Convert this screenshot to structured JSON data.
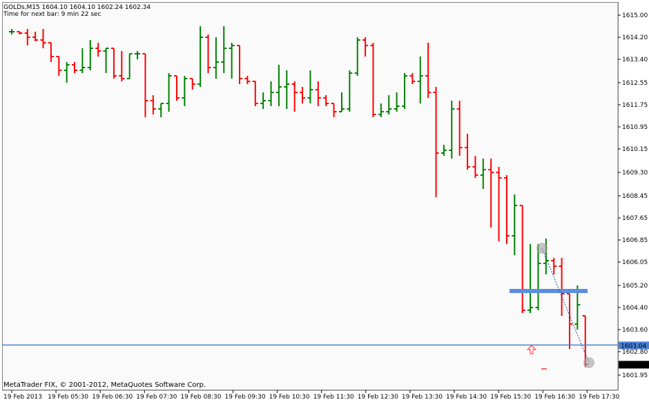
{
  "header": {
    "symbol_line": "GOLDs,M15  1604.10 1604.10 1602.24 1602.34",
    "timer_line": "Time for next bar: 9 min 22 sec"
  },
  "footer": {
    "copyright": "MetaTrader FIX, © 2001-2012, MetaQuotes Software Corp."
  },
  "colors": {
    "bull": "#008000",
    "bear": "#ff0000",
    "hline": "#4a7fd4",
    "zone": "#5a8ee0",
    "current_price_bg": "#000000",
    "level_label_bg": "#4a7fd4"
  },
  "chart_data": {
    "type": "ohlc",
    "ylim": [
      1601.55,
      1615.3
    ],
    "price_ticks": [
      "1615.00",
      "1614.20",
      "1613.40",
      "1612.55",
      "1611.75",
      "1610.95",
      "1610.15",
      "1609.30",
      "1608.45",
      "1607.65",
      "1606.85",
      "1606.05",
      "1605.20",
      "1604.40",
      "1603.60",
      "1602.80",
      "1601.95"
    ],
    "time_ticks": [
      "19 Feb 2013",
      "19 Feb 05:30",
      "19 Feb 06:30",
      "19 Feb 07:30",
      "19 Feb 08:30",
      "19 Feb 09:30",
      "19 Feb 10:30",
      "19 Feb 11:30",
      "19 Feb 12:30",
      "19 Feb 13:30",
      "19 Feb 14:30",
      "19 Feb 15:30",
      "19 Feb 16:30",
      "19 Feb 17:30"
    ],
    "bars": [
      {
        "o": 1614.4,
        "h": 1614.5,
        "l": 1614.3,
        "c": 1614.4
      },
      {
        "o": 1614.4,
        "h": 1614.4,
        "l": 1614.3,
        "c": 1614.35
      },
      {
        "o": 1614.35,
        "h": 1614.5,
        "l": 1613.9,
        "c": 1614.2
      },
      {
        "o": 1614.2,
        "h": 1614.4,
        "l": 1614.05,
        "c": 1614.1
      },
      {
        "o": 1614.1,
        "h": 1614.5,
        "l": 1613.8,
        "c": 1614.0
      },
      {
        "o": 1614.0,
        "h": 1614.0,
        "l": 1613.3,
        "c": 1613.5
      },
      {
        "o": 1613.5,
        "h": 1613.5,
        "l": 1612.8,
        "c": 1613.0
      },
      {
        "o": 1613.0,
        "h": 1613.3,
        "l": 1612.55,
        "c": 1613.2
      },
      {
        "o": 1613.2,
        "h": 1613.3,
        "l": 1612.9,
        "c": 1613.0
      },
      {
        "o": 1613.0,
        "h": 1613.8,
        "l": 1612.9,
        "c": 1613.1
      },
      {
        "o": 1613.1,
        "h": 1614.1,
        "l": 1613.0,
        "c": 1613.8
      },
      {
        "o": 1613.8,
        "h": 1614.0,
        "l": 1613.5,
        "c": 1613.7
      },
      {
        "o": 1613.7,
        "h": 1613.8,
        "l": 1612.9,
        "c": 1613.8
      },
      {
        "o": 1613.8,
        "h": 1613.8,
        "l": 1612.7,
        "c": 1612.8
      },
      {
        "o": 1612.8,
        "h": 1613.7,
        "l": 1612.6,
        "c": 1612.7
      },
      {
        "o": 1612.7,
        "h": 1613.6,
        "l": 1612.7,
        "c": 1613.6
      },
      {
        "o": 1613.6,
        "h": 1613.7,
        "l": 1613.4,
        "c": 1613.6
      },
      {
        "o": 1613.6,
        "h": 1613.6,
        "l": 1611.3,
        "c": 1611.9
      },
      {
        "o": 1611.9,
        "h": 1612.1,
        "l": 1611.4,
        "c": 1611.6
      },
      {
        "o": 1611.6,
        "h": 1611.8,
        "l": 1611.3,
        "c": 1611.8
      },
      {
        "o": 1611.8,
        "h": 1612.9,
        "l": 1611.5,
        "c": 1612.8
      },
      {
        "o": 1612.8,
        "h": 1612.8,
        "l": 1611.9,
        "c": 1612.0
      },
      {
        "o": 1612.0,
        "h": 1612.8,
        "l": 1611.7,
        "c": 1612.7
      },
      {
        "o": 1612.7,
        "h": 1612.7,
        "l": 1612.3,
        "c": 1612.5
      },
      {
        "o": 1612.5,
        "h": 1614.6,
        "l": 1612.4,
        "c": 1614.2
      },
      {
        "o": 1614.2,
        "h": 1614.3,
        "l": 1612.9,
        "c": 1613.1
      },
      {
        "o": 1613.1,
        "h": 1614.2,
        "l": 1612.7,
        "c": 1613.3
      },
      {
        "o": 1613.3,
        "h": 1614.6,
        "l": 1612.9,
        "c": 1613.8
      },
      {
        "o": 1613.8,
        "h": 1614.0,
        "l": 1612.7,
        "c": 1613.9
      },
      {
        "o": 1613.9,
        "h": 1613.9,
        "l": 1612.5,
        "c": 1612.7
      },
      {
        "o": 1612.7,
        "h": 1612.8,
        "l": 1612.5,
        "c": 1612.6
      },
      {
        "o": 1612.6,
        "h": 1612.6,
        "l": 1611.7,
        "c": 1611.8
      },
      {
        "o": 1611.8,
        "h": 1612.2,
        "l": 1611.6,
        "c": 1611.9
      },
      {
        "o": 1611.9,
        "h": 1612.6,
        "l": 1611.7,
        "c": 1612.2
      },
      {
        "o": 1612.2,
        "h": 1613.2,
        "l": 1611.7,
        "c": 1612.4
      },
      {
        "o": 1612.4,
        "h": 1613.0,
        "l": 1611.6,
        "c": 1612.5
      },
      {
        "o": 1612.5,
        "h": 1612.6,
        "l": 1611.5,
        "c": 1612.2
      },
      {
        "o": 1612.2,
        "h": 1612.4,
        "l": 1611.8,
        "c": 1612.0
      },
      {
        "o": 1612.0,
        "h": 1613.0,
        "l": 1611.8,
        "c": 1612.3
      },
      {
        "o": 1612.3,
        "h": 1612.6,
        "l": 1611.7,
        "c": 1612.0
      },
      {
        "o": 1612.0,
        "h": 1612.1,
        "l": 1611.7,
        "c": 1611.8
      },
      {
        "o": 1611.8,
        "h": 1611.8,
        "l": 1611.3,
        "c": 1611.5
      },
      {
        "o": 1611.5,
        "h": 1612.2,
        "l": 1611.5,
        "c": 1611.6
      },
      {
        "o": 1611.6,
        "h": 1613.0,
        "l": 1611.5,
        "c": 1612.9
      },
      {
        "o": 1612.9,
        "h": 1614.2,
        "l": 1612.8,
        "c": 1614.1
      },
      {
        "o": 1614.1,
        "h": 1614.2,
        "l": 1613.5,
        "c": 1613.9
      },
      {
        "o": 1613.9,
        "h": 1614.0,
        "l": 1611.3,
        "c": 1611.4
      },
      {
        "o": 1611.4,
        "h": 1611.8,
        "l": 1611.3,
        "c": 1611.5
      },
      {
        "o": 1611.5,
        "h": 1612.1,
        "l": 1611.4,
        "c": 1611.6
      },
      {
        "o": 1611.6,
        "h": 1612.2,
        "l": 1611.5,
        "c": 1611.7
      },
      {
        "o": 1611.7,
        "h": 1612.9,
        "l": 1611.6,
        "c": 1612.8
      },
      {
        "o": 1612.8,
        "h": 1612.9,
        "l": 1612.5,
        "c": 1612.6
      },
      {
        "o": 1612.6,
        "h": 1613.5,
        "l": 1611.8,
        "c": 1612.8
      },
      {
        "o": 1612.8,
        "h": 1614.0,
        "l": 1612.0,
        "c": 1612.2
      },
      {
        "o": 1612.2,
        "h": 1612.4,
        "l": 1608.4,
        "c": 1610.0
      },
      {
        "o": 1610.0,
        "h": 1610.3,
        "l": 1609.9,
        "c": 1610.1
      },
      {
        "o": 1610.1,
        "h": 1611.9,
        "l": 1609.8,
        "c": 1611.6
      },
      {
        "o": 1611.6,
        "h": 1611.9,
        "l": 1609.9,
        "c": 1610.2
      },
      {
        "o": 1610.2,
        "h": 1610.7,
        "l": 1609.4,
        "c": 1609.5
      },
      {
        "o": 1609.5,
        "h": 1609.9,
        "l": 1609.1,
        "c": 1609.2
      },
      {
        "o": 1609.2,
        "h": 1609.8,
        "l": 1608.7,
        "c": 1609.4
      },
      {
        "o": 1609.4,
        "h": 1609.8,
        "l": 1607.3,
        "c": 1609.3
      },
      {
        "o": 1609.3,
        "h": 1609.5,
        "l": 1606.8,
        "c": 1609.1
      },
      {
        "o": 1609.1,
        "h": 1609.2,
        "l": 1606.7,
        "c": 1607.0
      },
      {
        "o": 1607.0,
        "h": 1608.5,
        "l": 1606.3,
        "c": 1608.1
      },
      {
        "o": 1608.1,
        "h": 1608.1,
        "l": 1604.2,
        "c": 1604.3
      },
      {
        "o": 1604.3,
        "h": 1606.7,
        "l": 1604.2,
        "c": 1604.4
      },
      {
        "o": 1604.4,
        "h": 1606.7,
        "l": 1604.3,
        "c": 1606.0
      },
      {
        "o": 1606.0,
        "h": 1606.9,
        "l": 1605.6,
        "c": 1606.1
      },
      {
        "o": 1606.1,
        "h": 1606.2,
        "l": 1605.6,
        "c": 1605.9
      },
      {
        "o": 1605.9,
        "h": 1606.2,
        "l": 1604.1,
        "c": 1604.9
      },
      {
        "o": 1604.9,
        "h": 1604.9,
        "l": 1602.9,
        "c": 1603.8
      },
      {
        "o": 1603.8,
        "h": 1605.2,
        "l": 1603.6,
        "c": 1604.5
      },
      {
        "o": 1604.1,
        "h": 1604.1,
        "l": 1602.24,
        "c": 1602.34
      }
    ],
    "lines": {
      "hline_price": "1603.04",
      "zone_price": 1605.0,
      "current_price": "1602.34",
      "trend_from_price": 1606.55,
      "trend_to_price": 1602.4
    },
    "bottom_axis_label": "1601.95"
  }
}
